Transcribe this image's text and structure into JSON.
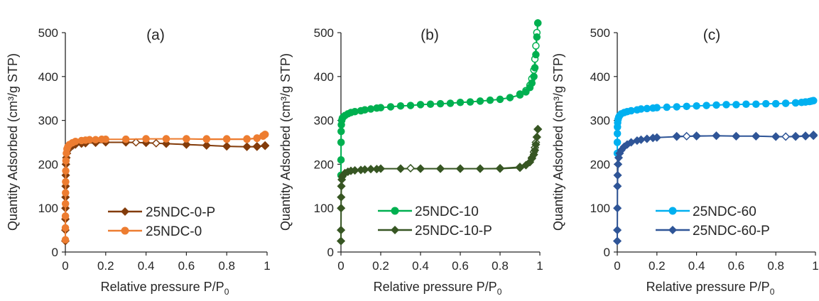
{
  "chart_data": [
    {
      "type": "scatter",
      "panel_label": "(a)",
      "xlabel_main": "Relative pressure P/P",
      "xlabel_sub": "0",
      "ylabel": "Quantity Adsorbed (cm³/g STP)",
      "xlim": [
        0,
        1
      ],
      "ylim": [
        0,
        500
      ],
      "xticks": [
        "0",
        "0.2",
        "0.4",
        "0.6",
        "0.8",
        "1"
      ],
      "yticks": [
        "0",
        "100",
        "200",
        "300",
        "400",
        "500"
      ],
      "legend_position": "bottom-center",
      "series": [
        {
          "name": "25NDC-0-P",
          "color": "#833c0b",
          "marker": "diamond",
          "adsorption": {
            "x": [
              0.0001,
              0.0002,
              0.0004,
              0.0007,
              0.001,
              0.0015,
              0.002,
              0.003,
              0.005,
              0.008,
              0.012,
              0.02,
              0.035,
              0.05,
              0.08,
              0.1,
              0.15,
              0.2,
              0.3,
              0.4,
              0.5,
              0.6,
              0.7,
              0.8,
              0.9,
              0.95,
              0.99
            ],
            "y": [
              25,
              50,
              75,
              100,
              125,
              150,
              175,
              200,
              215,
              225,
              232,
              238,
              242,
              245,
              247,
              248,
              249,
              250,
              250,
              249,
              247,
              245,
              243,
              241,
              240,
              240,
              242
            ]
          },
          "desorption": {
            "x": [
              0.99,
              0.95,
              0.9,
              0.8,
              0.7,
              0.6,
              0.5,
              0.45,
              0.4,
              0.35,
              0.3
            ],
            "y": [
              243,
              241,
              240,
              241,
              243,
              245,
              247,
              248,
              249,
              250,
              250
            ]
          }
        },
        {
          "name": "25NDC-0",
          "color": "#ed7d31",
          "marker": "circle",
          "adsorption": {
            "x": [
              0.0001,
              0.0002,
              0.0004,
              0.0007,
              0.001,
              0.0015,
              0.002,
              0.003,
              0.005,
              0.008,
              0.012,
              0.02,
              0.035,
              0.05,
              0.08,
              0.1,
              0.12,
              0.15,
              0.18,
              0.2,
              0.3,
              0.4,
              0.5,
              0.6,
              0.7,
              0.8,
              0.9,
              0.95,
              0.98,
              0.99
            ],
            "y": [
              28,
              55,
              82,
              110,
              135,
              160,
              185,
              208,
              225,
              235,
              240,
              245,
              249,
              252,
              254,
              255,
              256,
              256,
              257,
              257,
              257,
              258,
              258,
              258,
              257,
              257,
              257,
              259,
              264,
              268
            ]
          },
          "desorption": {
            "x": [
              0.99,
              0.98,
              0.95,
              0.9,
              0.8,
              0.7,
              0.6,
              0.5,
              0.4,
              0.3
            ],
            "y": [
              268,
              265,
              260,
              258,
              258,
              258,
              258,
              258,
              258,
              257
            ]
          }
        }
      ]
    },
    {
      "type": "scatter",
      "panel_label": "(b)",
      "xlabel_main": "Relative pressure P/P",
      "xlabel_sub": "0",
      "ylabel": "Quantity Adsorbed (cm³/g STP)",
      "xlim": [
        0,
        1
      ],
      "ylim": [
        0,
        500
      ],
      "xticks": [
        "0",
        "0.2",
        "0.4",
        "0.6",
        "0.8",
        "1"
      ],
      "yticks": [
        "0",
        "100",
        "200",
        "300",
        "400",
        "500"
      ],
      "legend_position": "bottom-center",
      "series": [
        {
          "name": "25NDC-10",
          "color": "#00b050",
          "marker": "circle",
          "adsorption": {
            "x": [
              0.0001,
              0.0003,
              0.0006,
              0.001,
              0.002,
              0.004,
              0.007,
              0.012,
              0.02,
              0.035,
              0.05,
              0.07,
              0.1,
              0.12,
              0.15,
              0.18,
              0.2,
              0.25,
              0.3,
              0.35,
              0.4,
              0.45,
              0.5,
              0.55,
              0.6,
              0.65,
              0.7,
              0.75,
              0.8,
              0.85,
              0.9,
              0.93,
              0.95,
              0.96,
              0.97,
              0.975,
              0.98,
              0.985,
              0.99
            ],
            "y": [
              175,
              210,
              250,
              275,
              290,
              300,
              305,
              308,
              311,
              315,
              318,
              320,
              322,
              324,
              326,
              328,
              329,
              331,
              333,
              334,
              336,
              337,
              338,
              339,
              341,
              342,
              344,
              346,
              348,
              352,
              358,
              365,
              375,
              385,
              400,
              420,
              450,
              490,
              522
            ]
          },
          "desorption": {
            "x": [
              0.99,
              0.985,
              0.98,
              0.975,
              0.97,
              0.96,
              0.95,
              0.93,
              0.9
            ],
            "y": [
              522,
              500,
              470,
              440,
              415,
              395,
              380,
              368,
              360
            ]
          }
        },
        {
          "name": "25NDC-10-P",
          "color": "#375623",
          "marker": "diamond",
          "adsorption": {
            "x": [
              0.0001,
              0.0003,
              0.0006,
              0.001,
              0.002,
              0.004,
              0.007,
              0.012,
              0.02,
              0.035,
              0.05,
              0.07,
              0.1,
              0.12,
              0.15,
              0.18,
              0.2,
              0.3,
              0.4,
              0.5,
              0.6,
              0.7,
              0.8,
              0.9,
              0.93,
              0.95,
              0.96,
              0.97,
              0.975,
              0.98,
              0.985,
              0.99
            ],
            "y": [
              25,
              50,
              100,
              125,
              150,
              165,
              172,
              176,
              180,
              183,
              185,
              186,
              187,
              188,
              189,
              189,
              190,
              190,
              190,
              190,
              190,
              190,
              190,
              192,
              198,
              205,
              213,
              222,
              232,
              245,
              262,
              280
            ]
          },
          "desorption": {
            "x": [
              0.99,
              0.985,
              0.98,
              0.975,
              0.97,
              0.96,
              0.95,
              0.9,
              0.8,
              0.7,
              0.6,
              0.5,
              0.4,
              0.35,
              0.3
            ],
            "y": [
              280,
              262,
              250,
              238,
              228,
              215,
              205,
              194,
              191,
              190,
              190,
              190,
              190,
              191,
              190
            ]
          }
        }
      ]
    },
    {
      "type": "scatter",
      "panel_label": "(c)",
      "xlabel_main": "Relative pressure P/P",
      "xlabel_sub": "0",
      "ylabel": "Quantity Adsorbed (cm³/g STP)",
      "xlim": [
        0,
        1
      ],
      "ylim": [
        0,
        500
      ],
      "xticks": [
        "0",
        "0.2",
        "0.4",
        "0.6",
        "0.8",
        "1"
      ],
      "yticks": [
        "0",
        "100",
        "200",
        "300",
        "400",
        "500"
      ],
      "legend_position": "bottom-center",
      "series": [
        {
          "name": "25NDC-60",
          "color": "#00b0f0",
          "marker": "circle",
          "adsorption": {
            "x": [
              0.0001,
              0.0003,
              0.0006,
              0.001,
              0.002,
              0.004,
              0.007,
              0.012,
              0.02,
              0.035,
              0.05,
              0.07,
              0.1,
              0.12,
              0.15,
              0.18,
              0.2,
              0.25,
              0.3,
              0.35,
              0.4,
              0.45,
              0.5,
              0.55,
              0.6,
              0.65,
              0.7,
              0.75,
              0.8,
              0.85,
              0.9,
              0.93,
              0.95,
              0.97,
              0.98,
              0.99
            ],
            "y": [
              225,
              250,
              270,
              285,
              295,
              302,
              307,
              311,
              315,
              318,
              320,
              322,
              324,
              326,
              327,
              328,
              329,
              330,
              331,
              332,
              333,
              334,
              335,
              336,
              336,
              337,
              337,
              338,
              338,
              339,
              340,
              341,
              342,
              343,
              344,
              345
            ]
          },
          "desorption": {
            "x": [
              0.99,
              0.98,
              0.95,
              0.9,
              0.85,
              0.8
            ],
            "y": [
              345,
              344,
              342,
              340,
              339,
              338
            ]
          }
        },
        {
          "name": "25NDC-60-P",
          "color": "#2f5597",
          "marker": "diamond",
          "adsorption": {
            "x": [
              0.0001,
              0.0003,
              0.0006,
              0.001,
              0.002,
              0.004,
              0.007,
              0.012,
              0.02,
              0.035,
              0.05,
              0.07,
              0.1,
              0.12,
              0.15,
              0.18,
              0.2,
              0.3,
              0.4,
              0.5,
              0.6,
              0.7,
              0.8,
              0.9,
              0.95,
              0.99
            ],
            "y": [
              25,
              50,
              100,
              150,
              175,
              200,
              215,
              225,
              232,
              240,
              245,
              250,
              254,
              256,
              258,
              260,
              261,
              263,
              264,
              265,
              264,
              264,
              263,
              263,
              264,
              265
            ]
          },
          "desorption": {
            "x": [
              0.99,
              0.95,
              0.9,
              0.85,
              0.8,
              0.7,
              0.6,
              0.5,
              0.4,
              0.35,
              0.3
            ],
            "y": [
              267,
              265,
              264,
              263,
              263,
              264,
              264,
              265,
              265,
              264,
              264
            ]
          }
        }
      ]
    }
  ]
}
